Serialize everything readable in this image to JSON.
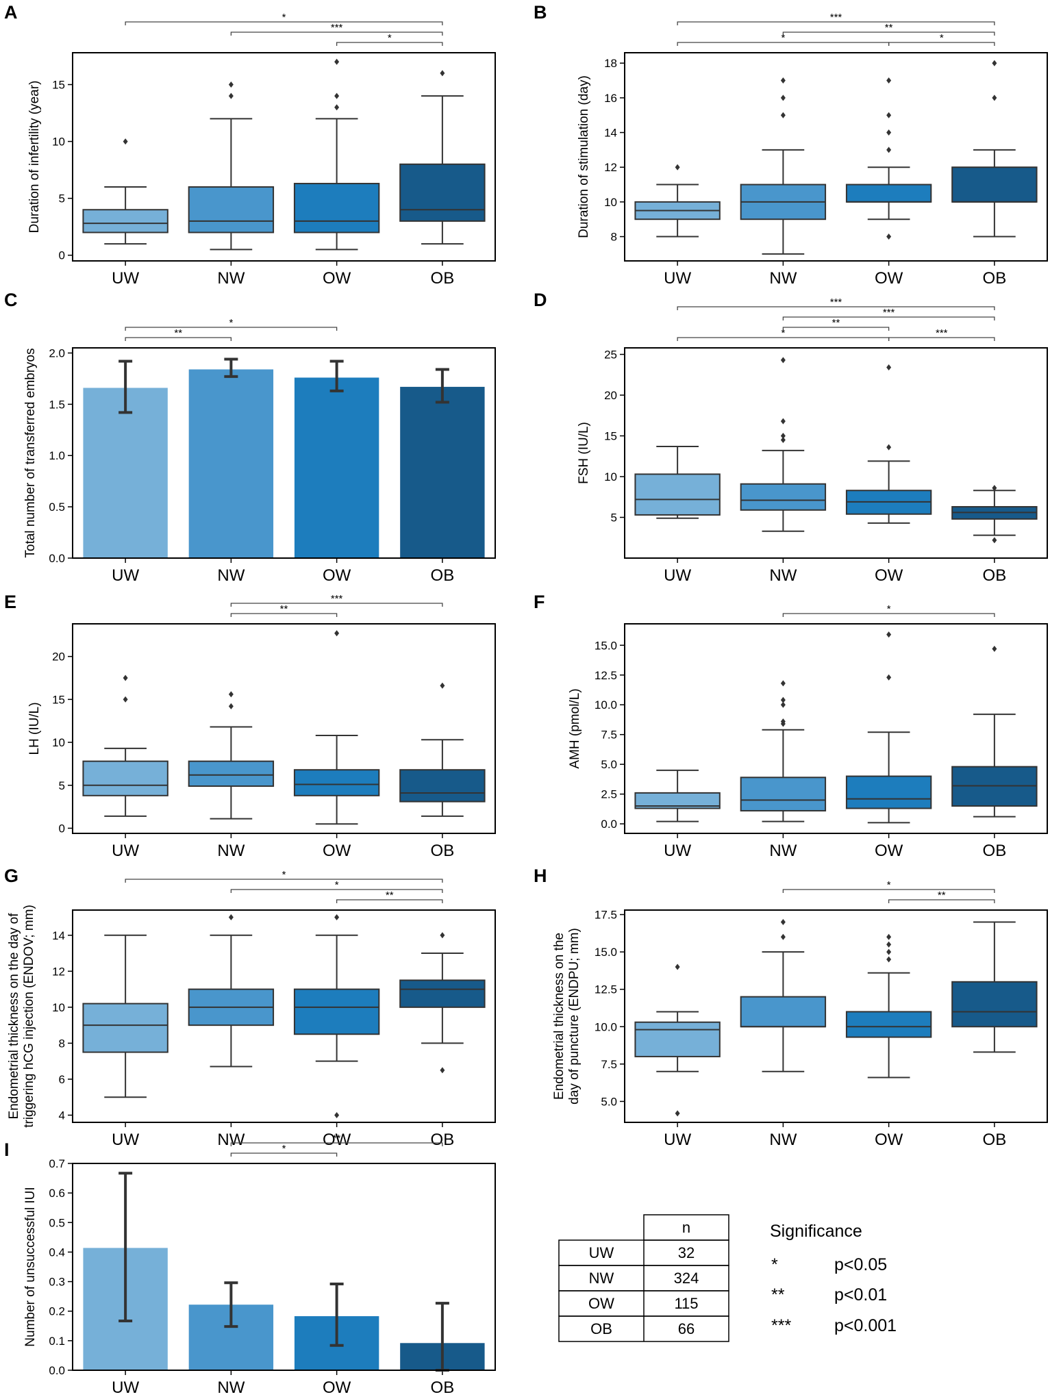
{
  "colors": {
    "UW": "#76b0d8",
    "NW": "#4996cc",
    "OW": "#1d7dbd",
    "OB": "#175a8a",
    "line": "#333333",
    "axis": "#000000"
  },
  "chart_data": [
    {
      "panel": "A",
      "type": "box",
      "ylabel": "Duration of infertility (year)",
      "categories": [
        "UW",
        "NW",
        "OW",
        "OB"
      ],
      "ylim": [
        -0.5,
        17.8
      ],
      "yticks": [
        0,
        5,
        10,
        15
      ],
      "ytick_labels": [
        "0",
        "5",
        "10",
        "15"
      ],
      "boxes": [
        {
          "q1": 2,
          "median": 2.8,
          "q3": 4,
          "low": 1,
          "high": 6,
          "outliers": [
            10
          ]
        },
        {
          "q1": 2,
          "median": 3,
          "q3": 6,
          "low": 0.5,
          "high": 12,
          "outliers": [
            14,
            15
          ]
        },
        {
          "q1": 2,
          "median": 3,
          "q3": 6.3,
          "low": 0.5,
          "high": 12,
          "outliers": [
            13,
            14,
            17
          ]
        },
        {
          "q1": 3,
          "median": 4,
          "q3": 8,
          "low": 1,
          "high": 14,
          "outliers": [
            16
          ]
        }
      ],
      "significance": [
        {
          "from": 0,
          "to": 3,
          "label": "*"
        },
        {
          "from": 1,
          "to": 3,
          "label": "***"
        },
        {
          "from": 2,
          "to": 3,
          "label": "*"
        }
      ]
    },
    {
      "panel": "B",
      "type": "box",
      "ylabel": "Duration of stimulation (day)",
      "categories": [
        "UW",
        "NW",
        "OW",
        "OB"
      ],
      "ylim": [
        6.6,
        18.6
      ],
      "yticks": [
        8,
        10,
        12,
        14,
        16,
        18
      ],
      "ytick_labels": [
        "8",
        "10",
        "12",
        "14",
        "16",
        "18"
      ],
      "boxes": [
        {
          "q1": 9,
          "median": 9.5,
          "q3": 10,
          "low": 8,
          "high": 11,
          "outliers": [
            12
          ]
        },
        {
          "q1": 9,
          "median": 10,
          "q3": 11,
          "low": 7,
          "high": 13,
          "outliers": [
            15,
            16,
            17
          ]
        },
        {
          "q1": 10,
          "median": 10,
          "q3": 11,
          "low": 9,
          "high": 12,
          "outliers": [
            8,
            13,
            14,
            15,
            17
          ]
        },
        {
          "q1": 10,
          "median": 10,
          "q3": 12,
          "low": 8,
          "high": 13,
          "outliers": [
            16,
            18
          ]
        }
      ],
      "significance": [
        {
          "from": 0,
          "to": 3,
          "label": "***"
        },
        {
          "from": 1,
          "to": 3,
          "label": "**"
        },
        {
          "from": 0,
          "to": 2,
          "label": "*"
        },
        {
          "from": 2,
          "to": 3,
          "label": "*"
        }
      ]
    },
    {
      "panel": "C",
      "type": "bar",
      "ylabel": "Total number of transferred embryos",
      "categories": [
        "UW",
        "NW",
        "OW",
        "OB"
      ],
      "ylim": [
        0,
        2.05
      ],
      "yticks": [
        0,
        0.5,
        1,
        1.5,
        2
      ],
      "ytick_labels": [
        "0.0",
        "0.5",
        "1.0",
        "1.5",
        "2.0"
      ],
      "values": [
        1.66,
        1.84,
        1.76,
        1.67
      ],
      "err_low": [
        1.42,
        1.77,
        1.63,
        1.52
      ],
      "err_high": [
        1.92,
        1.94,
        1.92,
        1.84
      ],
      "significance": [
        {
          "from": 0,
          "to": 2,
          "label": "*"
        },
        {
          "from": 0,
          "to": 1,
          "label": "**"
        }
      ]
    },
    {
      "panel": "D",
      "type": "box",
      "ylabel": "FSH (IU/L)",
      "categories": [
        "UW",
        "NW",
        "OW",
        "OB"
      ],
      "ylim": [
        0,
        25.8
      ],
      "yticks": [
        5,
        10,
        15,
        20,
        25
      ],
      "ytick_labels": [
        "5",
        "10",
        "15",
        "20",
        "25"
      ],
      "boxes": [
        {
          "q1": 5.3,
          "median": 7.2,
          "q3": 10.3,
          "low": 4.9,
          "high": 13.7,
          "outliers": []
        },
        {
          "q1": 5.9,
          "median": 7.1,
          "q3": 9.1,
          "low": 3.3,
          "high": 13.2,
          "outliers": [
            14.5,
            15,
            16.8,
            24.3
          ]
        },
        {
          "q1": 5.4,
          "median": 6.9,
          "q3": 8.3,
          "low": 4.3,
          "high": 11.9,
          "outliers": [
            13.6,
            23.4
          ]
        },
        {
          "q1": 4.8,
          "median": 5.6,
          "q3": 6.3,
          "low": 2.8,
          "high": 8.3,
          "outliers": [
            2.2,
            8.6
          ]
        }
      ],
      "significance": [
        {
          "from": 0,
          "to": 3,
          "label": "***"
        },
        {
          "from": 1,
          "to": 3,
          "label": "***"
        },
        {
          "from": 1,
          "to": 2,
          "label": "**"
        },
        {
          "from": 0,
          "to": 2,
          "label": "*"
        },
        {
          "from": 2,
          "to": 3,
          "label": "***"
        }
      ]
    },
    {
      "panel": "E",
      "type": "box",
      "ylabel": "LH (IU/L)",
      "categories": [
        "UW",
        "NW",
        "OW",
        "OB"
      ],
      "ylim": [
        -0.6,
        23.8
      ],
      "yticks": [
        0,
        5,
        10,
        15,
        20
      ],
      "ytick_labels": [
        "0",
        "5",
        "10",
        "15",
        "20"
      ],
      "boxes": [
        {
          "q1": 3.8,
          "median": 5,
          "q3": 7.8,
          "low": 1.4,
          "high": 9.3,
          "outliers": [
            15,
            17.5
          ]
        },
        {
          "q1": 4.9,
          "median": 6.2,
          "q3": 7.8,
          "low": 1.1,
          "high": 11.8,
          "outliers": [
            14.2,
            15.6
          ]
        },
        {
          "q1": 3.8,
          "median": 5.1,
          "q3": 6.8,
          "low": 0.5,
          "high": 10.8,
          "outliers": [
            22.7
          ]
        },
        {
          "q1": 3.1,
          "median": 4.1,
          "q3": 6.8,
          "low": 1.4,
          "high": 10.3,
          "outliers": [
            16.6
          ]
        }
      ],
      "significance": [
        {
          "from": 1,
          "to": 3,
          "label": "***"
        },
        {
          "from": 1,
          "to": 2,
          "label": "**"
        }
      ]
    },
    {
      "panel": "F",
      "type": "box",
      "ylabel": "AMH (pmol/L)",
      "categories": [
        "UW",
        "NW",
        "OW",
        "OB"
      ],
      "ylim": [
        -0.8,
        16.8
      ],
      "yticks": [
        0,
        2.5,
        5,
        7.5,
        10,
        12.5,
        15
      ],
      "ytick_labels": [
        "0.0",
        "2.5",
        "5.0",
        "7.5",
        "10.0",
        "12.5",
        "15.0"
      ],
      "boxes": [
        {
          "q1": 1.3,
          "median": 1.5,
          "q3": 2.6,
          "low": 0.2,
          "high": 4.5,
          "outliers": []
        },
        {
          "q1": 1.1,
          "median": 2,
          "q3": 3.9,
          "low": 0.2,
          "high": 7.9,
          "outliers": [
            8.4,
            8.6,
            10,
            10.4,
            11.8
          ]
        },
        {
          "q1": 1.3,
          "median": 2.1,
          "q3": 4,
          "low": 0.1,
          "high": 7.7,
          "outliers": [
            12.3,
            15.9
          ]
        },
        {
          "q1": 1.5,
          "median": 3.2,
          "q3": 4.8,
          "low": 0.6,
          "high": 9.2,
          "outliers": [
            14.7
          ]
        }
      ],
      "significance": [
        {
          "from": 1,
          "to": 3,
          "label": "*"
        }
      ]
    },
    {
      "panel": "G",
      "type": "box",
      "ylabel": "Endometrial thickness on the day of\ntriggering hCG injection (ENDOV; mm)",
      "categories": [
        "UW",
        "NW",
        "OW",
        "OB"
      ],
      "ylim": [
        3.6,
        15.4
      ],
      "yticks": [
        4,
        6,
        8,
        10,
        12,
        14
      ],
      "ytick_labels": [
        "4",
        "6",
        "8",
        "10",
        "12",
        "14"
      ],
      "boxes": [
        {
          "q1": 7.5,
          "median": 9,
          "q3": 10.2,
          "low": 5,
          "high": 14,
          "outliers": []
        },
        {
          "q1": 9,
          "median": 10,
          "q3": 11,
          "low": 6.7,
          "high": 14,
          "outliers": [
            15
          ]
        },
        {
          "q1": 8.5,
          "median": 10,
          "q3": 11,
          "low": 7,
          "high": 14,
          "outliers": [
            4,
            15
          ]
        },
        {
          "q1": 10,
          "median": 11,
          "q3": 11.5,
          "low": 8,
          "high": 13,
          "outliers": [
            6.5,
            14
          ]
        }
      ],
      "significance": [
        {
          "from": 0,
          "to": 3,
          "label": "*"
        },
        {
          "from": 1,
          "to": 3,
          "label": "*"
        },
        {
          "from": 2,
          "to": 3,
          "label": "**"
        }
      ]
    },
    {
      "panel": "H",
      "type": "box",
      "ylabel": "Endometrial thickness on the\nday of puncture (ENDPU; mm)",
      "categories": [
        "UW",
        "NW",
        "OW",
        "OB"
      ],
      "ylim": [
        3.6,
        17.8
      ],
      "yticks": [
        5,
        7.5,
        10,
        12.5,
        15,
        17.5
      ],
      "ytick_labels": [
        "5.0",
        "7.5",
        "10.0",
        "12.5",
        "15.0",
        "17.5"
      ],
      "boxes": [
        {
          "q1": 8,
          "median": 9.8,
          "q3": 10.3,
          "low": 7,
          "high": 11,
          "outliers": [
            4.2,
            14
          ]
        },
        {
          "q1": 10,
          "median": 10,
          "q3": 12,
          "low": 7,
          "high": 15,
          "outliers": [
            16,
            17
          ]
        },
        {
          "q1": 9.3,
          "median": 10,
          "q3": 11,
          "low": 6.6,
          "high": 13.6,
          "outliers": [
            14.5,
            15,
            15.5,
            16
          ]
        },
        {
          "q1": 10,
          "median": 11,
          "q3": 13,
          "low": 8.3,
          "high": 17,
          "outliers": []
        }
      ],
      "significance": [
        {
          "from": 1,
          "to": 3,
          "label": "*"
        },
        {
          "from": 2,
          "to": 3,
          "label": "**"
        }
      ]
    },
    {
      "panel": "I",
      "type": "bar",
      "ylabel": "Number of unsuccessful IUI",
      "categories": [
        "UW",
        "NW",
        "OW",
        "OB"
      ],
      "ylim": [
        0,
        0.7
      ],
      "yticks": [
        0,
        0.1,
        0.2,
        0.3,
        0.4,
        0.5,
        0.6,
        0.7
      ],
      "ytick_labels": [
        "0.0",
        "0.1",
        "0.2",
        "0.3",
        "0.4",
        "0.5",
        "0.6",
        "0.7"
      ],
      "values": [
        0.414,
        0.222,
        0.183,
        0.092
      ],
      "err_low": [
        0.167,
        0.148,
        0.084,
        0.0
      ],
      "err_high": [
        0.667,
        0.296,
        0.292,
        0.227
      ],
      "significance": [
        {
          "from": 1,
          "to": 3,
          "label": "**"
        },
        {
          "from": 1,
          "to": 2,
          "label": "*"
        }
      ]
    }
  ],
  "sample_table": {
    "header": "n",
    "rows": [
      {
        "group": "UW",
        "n": "32"
      },
      {
        "group": "NW",
        "n": "324"
      },
      {
        "group": "OW",
        "n": "115"
      },
      {
        "group": "OB",
        "n": "66"
      }
    ]
  },
  "legend": {
    "title": "Significance",
    "items": [
      {
        "symbol": "*",
        "text": "p<0.05"
      },
      {
        "symbol": "**",
        "text": "p<0.01"
      },
      {
        "symbol": "***",
        "text": "p<0.001"
      }
    ]
  }
}
